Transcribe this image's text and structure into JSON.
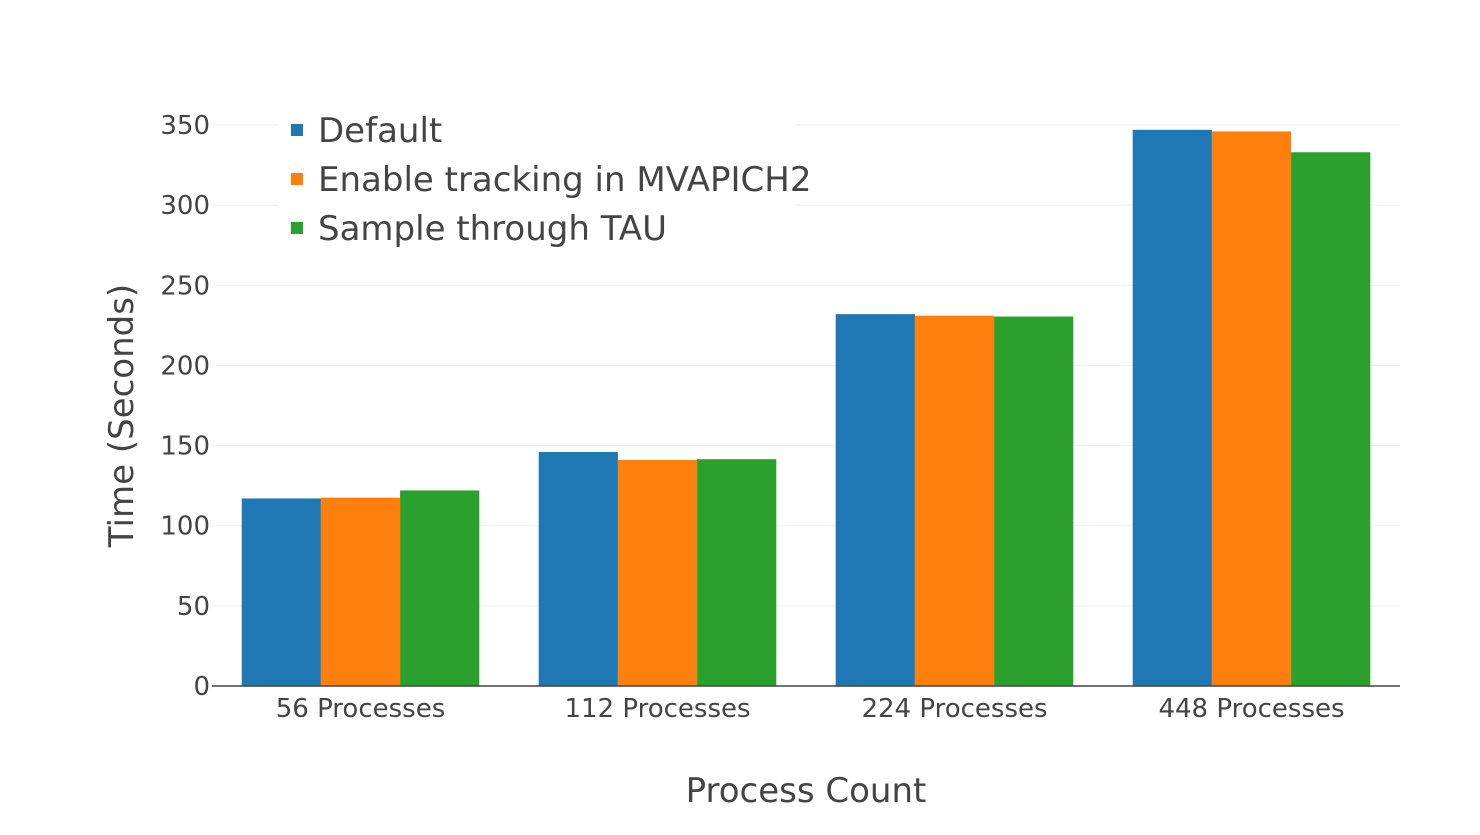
{
  "chart_data": {
    "type": "bar",
    "xlabel": "Process Count",
    "ylabel": "Time (Seconds)",
    "ylim": [
      0,
      350
    ],
    "yticks": [
      0,
      50,
      100,
      150,
      200,
      250,
      300,
      350
    ],
    "grid": true,
    "legend_position": "top-left",
    "categories": [
      "56 Processes",
      "112 Processes",
      "224 Processes",
      "448 Processes"
    ],
    "series": [
      {
        "name": "Default",
        "color": "#1f77b4",
        "values": [
          117,
          146,
          232,
          347
        ]
      },
      {
        "name": "Enable tracking in MVAPICH2",
        "color": "#ff7f0e",
        "values": [
          117.5,
          141,
          231,
          346
        ]
      },
      {
        "name": "Sample through TAU",
        "color": "#2ca02c",
        "values": [
          122,
          141.5,
          230.5,
          333
        ]
      }
    ]
  }
}
